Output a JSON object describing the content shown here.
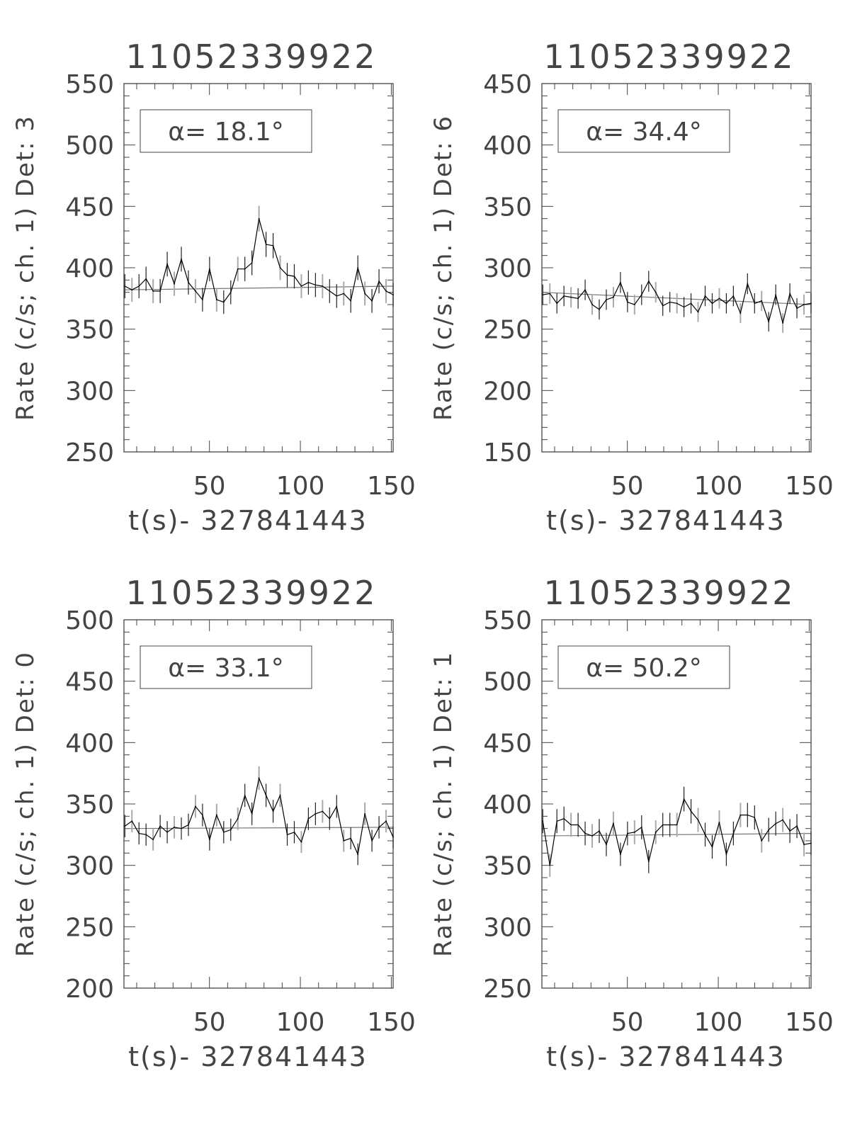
{
  "chart_data": [
    {
      "type": "line",
      "title": "11052339922",
      "xlabel": "t(s)- 327841443",
      "ylabel": "Rate (c/s; ch. 1) Det: 3",
      "legend": "α= 18.1°",
      "xlim": [
        3,
        151
      ],
      "ylim": [
        250,
        550
      ],
      "xticks": [
        50,
        100,
        150
      ],
      "yticks": [
        250,
        300,
        350,
        400,
        450,
        500,
        550
      ],
      "grid": false,
      "error_bars": true,
      "fit": [
        382,
        385
      ],
      "values": [
        385,
        382,
        385,
        391,
        381,
        381,
        403,
        387,
        407,
        388,
        381,
        374,
        399,
        374,
        372,
        380,
        399,
        399,
        404,
        440,
        419,
        418,
        400,
        394,
        393,
        385,
        388,
        386,
        385,
        381,
        377,
        379,
        373,
        400,
        379,
        373,
        389,
        381,
        378
      ]
    },
    {
      "type": "line",
      "title": "11052339922",
      "xlabel": "t(s)- 327841443",
      "ylabel": "Rate (c/s; ch. 1) Det: 6",
      "legend": "α= 34.4°",
      "xlim": [
        3,
        151
      ],
      "ylim": [
        150,
        450
      ],
      "xticks": [
        50,
        100,
        150
      ],
      "yticks": [
        150,
        200,
        250,
        300,
        350,
        400,
        450
      ],
      "grid": false,
      "error_bars": true,
      "fit": [
        280,
        270
      ],
      "values": [
        278,
        279,
        271,
        277,
        276,
        275,
        282,
        270,
        266,
        274,
        276,
        288,
        272,
        270,
        278,
        289,
        280,
        269,
        272,
        271,
        268,
        271,
        264,
        277,
        271,
        275,
        271,
        277,
        263,
        287,
        271,
        273,
        256,
        278,
        255,
        279,
        267,
        270,
        271
      ]
    },
    {
      "type": "line",
      "title": "11052339922",
      "xlabel": "t(s)- 327841443",
      "ylabel": "Rate (c/s; ch. 1) Det: 0",
      "legend": "α= 33.1°",
      "xlim": [
        3,
        151
      ],
      "ylim": [
        200,
        500
      ],
      "xticks": [
        50,
        100,
        150
      ],
      "yticks": [
        200,
        250,
        300,
        350,
        400,
        450,
        500
      ],
      "grid": false,
      "error_bars": true,
      "fit": [
        330,
        331
      ],
      "values": [
        332,
        336,
        326,
        325,
        321,
        332,
        327,
        331,
        330,
        333,
        348,
        341,
        321,
        341,
        327,
        329,
        338,
        357,
        342,
        371,
        357,
        344,
        357,
        325,
        327,
        319,
        338,
        342,
        344,
        338,
        348,
        320,
        322,
        309,
        342,
        320,
        331,
        336,
        323
      ]
    },
    {
      "type": "line",
      "title": "11052339922",
      "xlabel": "t(s)- 327841443",
      "ylabel": "Rate (c/s; ch. 1) Det: 1",
      "legend": "α= 50.2°",
      "xlim": [
        3,
        151
      ],
      "ylim": [
        250,
        550
      ],
      "xticks": [
        50,
        100,
        150
      ],
      "yticks": [
        250,
        300,
        350,
        400,
        450,
        500,
        550
      ],
      "grid": false,
      "error_bars": true,
      "fit": [
        374,
        376
      ],
      "values": [
        386,
        350,
        386,
        388,
        383,
        383,
        376,
        374,
        378,
        367,
        384,
        359,
        376,
        377,
        381,
        353,
        377,
        383,
        383,
        383,
        404,
        394,
        387,
        375,
        365,
        385,
        359,
        376,
        391,
        391,
        389,
        370,
        379,
        384,
        387,
        378,
        382,
        367,
        368
      ]
    }
  ],
  "colors": {
    "line": "#000000",
    "error_alt": "#aaaaaa",
    "axis": "#444444"
  }
}
